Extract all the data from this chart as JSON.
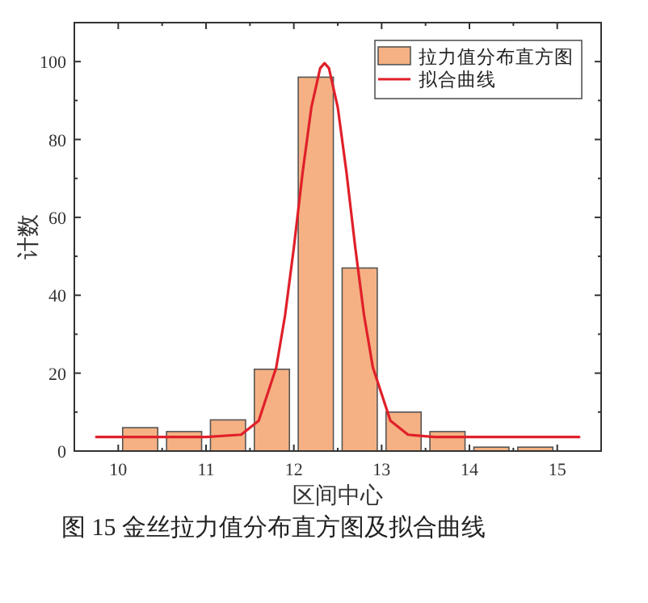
{
  "chart_data": {
    "type": "histogram",
    "xlabel": "区间中心",
    "ylabel": "计数",
    "bins": [
      10,
      10.5,
      11,
      11.5,
      12,
      12.5,
      13,
      13.5,
      14,
      14.5,
      15
    ],
    "series": [
      {
        "name": "拉力值分布直方图",
        "color": "#f5b183",
        "values": [
          6,
          5,
          8,
          21,
          96,
          47,
          10,
          5,
          1,
          1
        ]
      },
      {
        "name": "拟合曲线",
        "type": "line",
        "color": "#e0202a",
        "x": [
          9.75,
          11.0,
          11.4,
          11.6,
          11.8,
          11.9,
          12.0,
          12.1,
          12.2,
          12.3,
          12.35,
          12.4,
          12.5,
          12.6,
          12.7,
          12.8,
          12.9,
          13.1,
          13.3,
          13.6,
          15.25
        ],
        "values": [
          3.6,
          3.6,
          4.2,
          7.8,
          21.5,
          34.8,
          52.2,
          71.5,
          88.3,
          98.3,
          99.6,
          98.3,
          88.3,
          71.5,
          52.2,
          34.8,
          21.5,
          7.8,
          4.2,
          3.6,
          3.6
        ]
      }
    ],
    "xlim": [
      9.5,
      15.5
    ],
    "xticks": [
      10,
      11,
      12,
      13,
      14,
      15
    ],
    "ylim": [
      0,
      110
    ],
    "yticks": [
      0,
      20,
      40,
      60,
      80,
      100
    ],
    "legend": "top right",
    "grid": false,
    "annotations": [
      "图 15  金丝拉力值分布直方图及拟合曲线"
    ]
  }
}
